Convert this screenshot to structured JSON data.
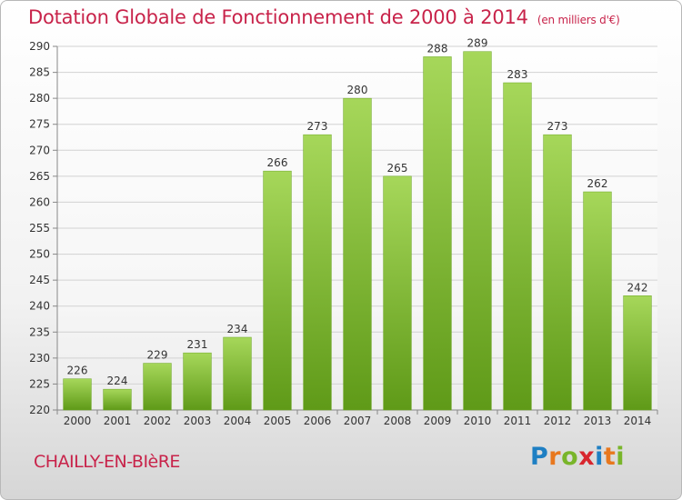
{
  "title": "Dotation Globale de Fonctionnement de 2000 à 2014",
  "unit": "(en milliers d'€)",
  "commune": "CHAILLY-EN-BIèRE",
  "brand": {
    "letters": [
      "P",
      "r",
      "o",
      "x",
      "i",
      "t",
      "i"
    ],
    "colors": [
      "#1e7fc3",
      "#e8781e",
      "#79b52a",
      "#d8262e",
      "#1e7fc3",
      "#e8781e",
      "#79b52a"
    ]
  },
  "colors": {
    "bar_light": "#a6d75a",
    "bar_dark": "#5f9a18",
    "accent": "#c8234a"
  },
  "chart_data": {
    "type": "bar",
    "categories": [
      "2000",
      "2001",
      "2002",
      "2003",
      "2004",
      "2005",
      "2006",
      "2007",
      "2008",
      "2009",
      "2010",
      "2011",
      "2012",
      "2013",
      "2014"
    ],
    "values": [
      226,
      224,
      229,
      231,
      234,
      266,
      273,
      280,
      265,
      288,
      289,
      283,
      273,
      262,
      242
    ],
    "ylim": [
      220,
      290
    ],
    "yticks": [
      220,
      225,
      230,
      235,
      240,
      245,
      250,
      255,
      260,
      265,
      270,
      275,
      280,
      285,
      290
    ],
    "grid": true,
    "data_labels": true
  }
}
